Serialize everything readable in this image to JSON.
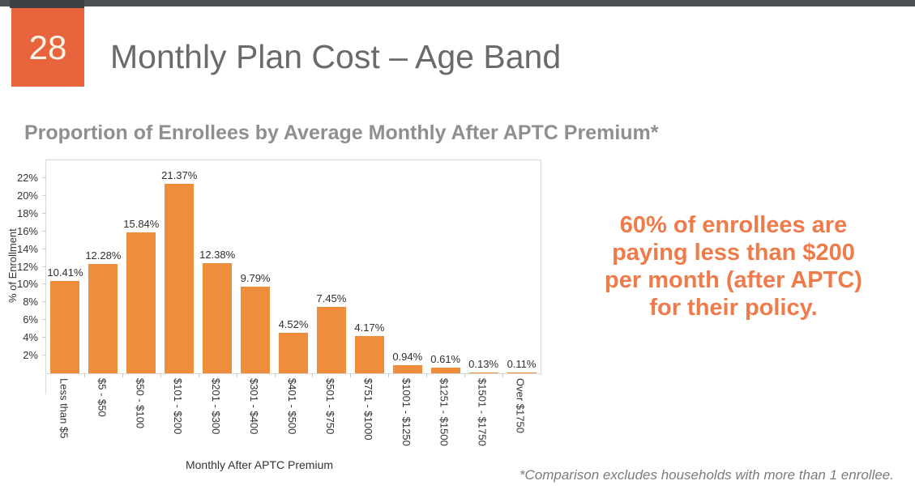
{
  "slide": {
    "number": "28",
    "title": "Monthly Plan Cost – Age Band",
    "subtitle": "Proportion of Enrollees by Average Monthly After APTC Premium*",
    "footnote": "*Comparison excludes households with more than 1 enrollee.",
    "colors": {
      "topbar": "#4B5054",
      "slide_number_box": "#E8643C",
      "bar_orange": "#EE8E3D",
      "callout_orange": "#EF7B4A",
      "title_gray": "#6A6A6A",
      "subtitle_gray": "#8F8F8F"
    }
  },
  "callout": {
    "lines": [
      "60% of enrollees are",
      "paying less than $200",
      "per month (after APTC)",
      "for their policy."
    ]
  },
  "chart_data": {
    "type": "bar",
    "title": "Proportion of Enrollees by Average Monthly After APTC Premium*",
    "categories": [
      "Less than $5",
      "$5 - $50",
      "$50 - $100",
      "$101 - $200",
      "$201 - $300",
      "$301 - $400",
      "$401 - $500",
      "$501 - $750",
      "$751 - $1000",
      "$1001 - $1250",
      "$1251 - $1500",
      "$1501 - $1750",
      "Over $1750"
    ],
    "values": [
      10.41,
      12.28,
      15.84,
      21.37,
      12.38,
      9.79,
      4.52,
      7.45,
      4.17,
      0.94,
      0.61,
      0.13,
      0.11
    ],
    "value_labels": [
      "10.41%",
      "12.28%",
      "15.84%",
      "21.37%",
      "12.38%",
      "9.79%",
      "4.52%",
      "7.45%",
      "4.17%",
      "0.94%",
      "0.61%",
      "0.13%",
      "0.11%"
    ],
    "xlabel": "Monthly After APTC Premium",
    "ylabel": "% of Enrollment",
    "ylim": [
      0,
      24
    ],
    "yticks": [
      2,
      4,
      6,
      8,
      10,
      12,
      14,
      16,
      18,
      20,
      22
    ],
    "ytick_suffix": "%",
    "bar_color": "#EE8E3D",
    "grid": false,
    "legend": false
  }
}
